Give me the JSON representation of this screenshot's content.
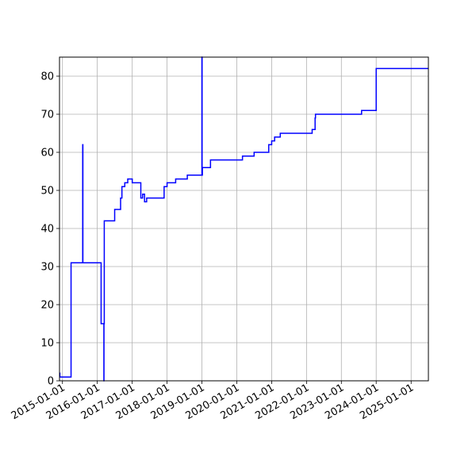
{
  "chart_data": {
    "type": "line",
    "title": "",
    "xlabel": "",
    "ylabel": "",
    "x_axis_type": "date",
    "xlim": [
      "2014-12-01",
      "2025-07-01"
    ],
    "ylim": [
      0,
      85
    ],
    "grid": true,
    "legend": "none",
    "line_style": "step",
    "colors": {
      "line": "#0000ff",
      "grid": "#b0b0b0",
      "axis": "#000000"
    },
    "x_ticks": [
      "2015-01-01",
      "2016-01-01",
      "2017-01-01",
      "2018-01-01",
      "2019-01-01",
      "2020-01-01",
      "2021-01-01",
      "2022-01-01",
      "2023-01-01",
      "2024-01-01",
      "2025-01-01"
    ],
    "x_tick_labels": [
      "2015-01-01",
      "2016-01-01",
      "2017-01-01",
      "2018-01-01",
      "2019-01-01",
      "2020-01-01",
      "2021-01-01",
      "2022-01-01",
      "2023-01-01",
      "2024-01-01",
      "2025-01-01"
    ],
    "y_ticks": [
      0,
      10,
      20,
      30,
      40,
      50,
      60,
      70,
      80
    ],
    "y_tick_labels": [
      "0",
      "10",
      "20",
      "30",
      "40",
      "50",
      "60",
      "70",
      "80"
    ],
    "series": [
      {
        "x": [
          "2014-12-01",
          "2014-12-05",
          "2015-04-01",
          "2015-08-01",
          "2015-08-03",
          "2016-02-10",
          "2016-03-10",
          "2016-03-11",
          "2016-03-14",
          "2016-06-01",
          "2016-07-01",
          "2016-09-01",
          "2016-09-15",
          "2016-10-15",
          "2016-11-15",
          "2017-01-01",
          "2017-04-01",
          "2017-04-20",
          "2017-05-10",
          "2017-05-12",
          "2017-05-14",
          "2017-06-01",
          "2017-12-01",
          "2018-01-01",
          "2018-04-01",
          "2018-08-01",
          "2019-01-01",
          "2019-01-03",
          "2019-01-06",
          "2019-02-01",
          "2019-04-01",
          "2020-03-01",
          "2020-07-01",
          "2020-12-01",
          "2021-01-01",
          "2021-02-01",
          "2021-04-01",
          "2022-03-01",
          "2022-04-01",
          "2022-04-05",
          "2023-08-01",
          "2024-01-01",
          "2025-07-01"
        ],
        "y": [
          2,
          1,
          31,
          62,
          31,
          15,
          0,
          15,
          42,
          42,
          45,
          48,
          51,
          52,
          53,
          52,
          48,
          49,
          47,
          47,
          47,
          48,
          51,
          52,
          53,
          54,
          85,
          54,
          56,
          56,
          58,
          59,
          60,
          62,
          63,
          64,
          65,
          66,
          69,
          70,
          71,
          82,
          82
        ]
      }
    ]
  }
}
